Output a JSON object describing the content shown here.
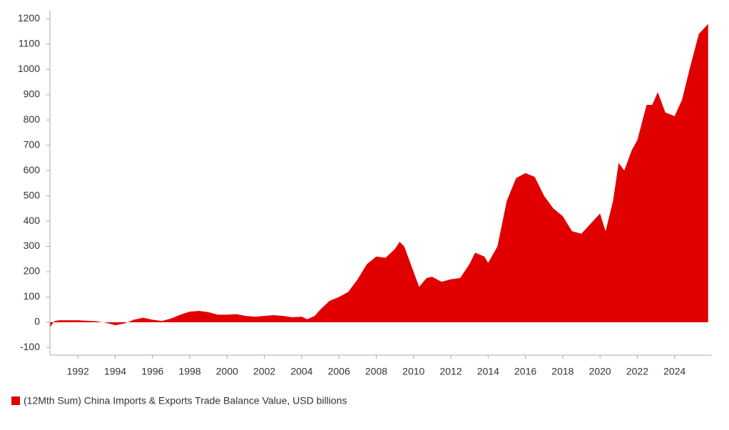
{
  "chart_data": {
    "type": "area",
    "x": [
      1990.5,
      1990.75,
      1991,
      1992,
      1993,
      1993.5,
      1994,
      1994.5,
      1995,
      1995.5,
      1996,
      1996.5,
      1997,
      1997.5,
      1998,
      1998.5,
      1999,
      1999.5,
      2000,
      2000.5,
      2001,
      2001.5,
      2002,
      2002.5,
      2003,
      2003.5,
      2004,
      2004.3,
      2004.7,
      2005,
      2005.5,
      2006,
      2006.5,
      2007,
      2007.5,
      2008,
      2008.5,
      2009,
      2009.25,
      2009.5,
      2010,
      2010.3,
      2010.7,
      2011,
      2011.5,
      2012,
      2012.5,
      2013,
      2013.3,
      2013.8,
      2014,
      2014.5,
      2015,
      2015.5,
      2016,
      2016.5,
      2017,
      2017.5,
      2018,
      2018.5,
      2019,
      2019.5,
      2020,
      2020.3,
      2020.7,
      2021,
      2021.3,
      2021.7,
      2022,
      2022.5,
      2022.8,
      2023.1,
      2023.5,
      2024,
      2024.4,
      2024.8,
      2025.3,
      2025.8
    ],
    "series": [
      {
        "name": "(12Mth Sum) China Imports & Exports Trade Balance Value, USD billions",
        "color": "#e00000",
        "values": [
          -20,
          5,
          8,
          8,
          4,
          -2,
          -12,
          -5,
          10,
          18,
          10,
          5,
          15,
          30,
          42,
          45,
          40,
          30,
          30,
          32,
          25,
          22,
          25,
          28,
          25,
          20,
          22,
          12,
          25,
          50,
          85,
          100,
          120,
          170,
          230,
          260,
          255,
          290,
          318,
          300,
          200,
          140,
          175,
          180,
          160,
          170,
          175,
          230,
          275,
          260,
          235,
          300,
          480,
          570,
          590,
          575,
          500,
          450,
          420,
          360,
          350,
          390,
          430,
          360,
          480,
          630,
          600,
          680,
          720,
          860,
          860,
          910,
          830,
          815,
          880,
          1000,
          1140,
          1180
        ]
      }
    ],
    "xlim": [
      1990.5,
      2026
    ],
    "xticks": [
      1992,
      1994,
      1996,
      1998,
      2000,
      2002,
      2004,
      2006,
      2008,
      2010,
      2012,
      2014,
      2016,
      2018,
      2020,
      2022,
      2024
    ],
    "ylim": [
      -130,
      1235
    ],
    "yticks": [
      -100,
      0,
      100,
      200,
      300,
      400,
      500,
      600,
      700,
      800,
      900,
      1000,
      1100,
      1200
    ]
  }
}
